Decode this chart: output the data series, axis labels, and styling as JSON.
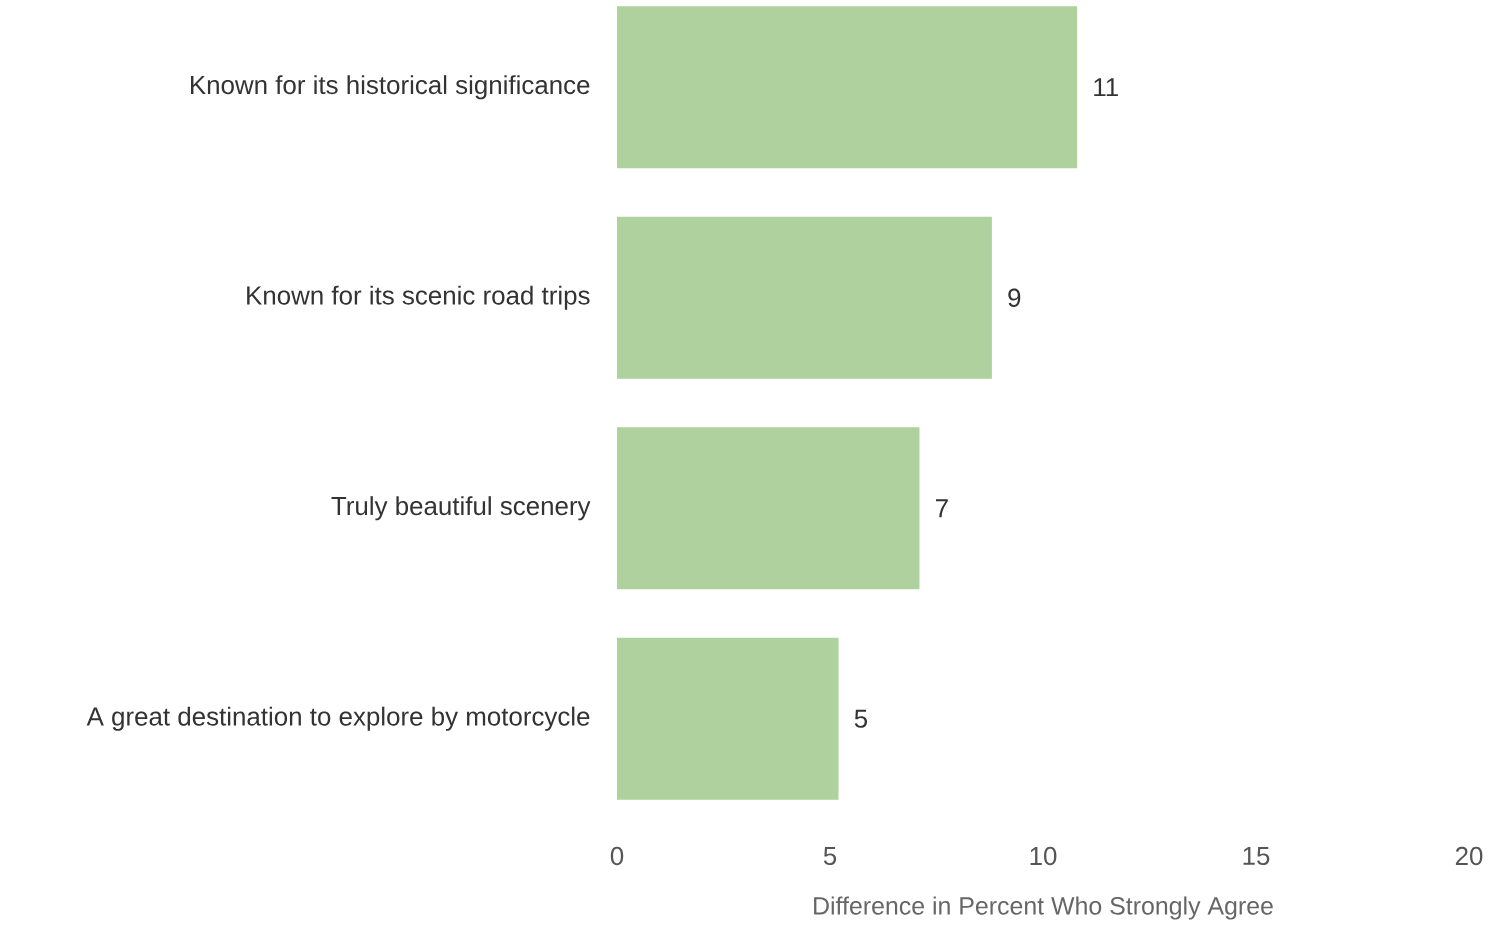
{
  "chart_data": {
    "type": "bar",
    "orientation": "horizontal",
    "categories": [
      "Known for its historical significance",
      "Known for its scenic road trips",
      "Truly beautiful scenery",
      "A great destination to explore by motorcycle"
    ],
    "values": [
      10.8,
      8.8,
      7.1,
      5.2
    ],
    "value_labels": [
      "11",
      "9",
      "7",
      "5"
    ],
    "color": "#aed19e",
    "xlabel": "Difference in Percent Who Strongly Agree",
    "xlim": [
      0,
      20
    ],
    "xticks": [
      0,
      5,
      10,
      15,
      20
    ]
  }
}
